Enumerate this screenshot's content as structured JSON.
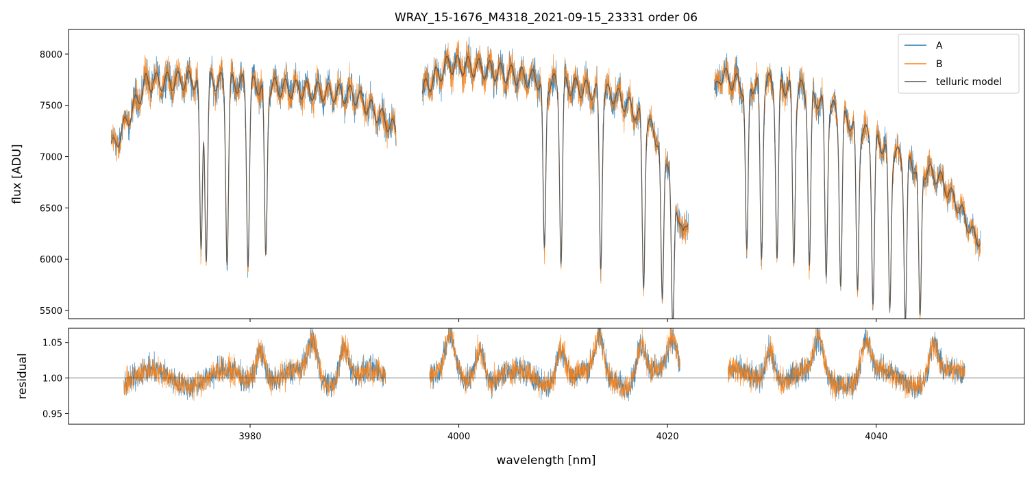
{
  "chart_data": {
    "type": "line",
    "title": "WRAY_15-1676_M4318_2021-09-15_23331  order 06",
    "xlabel": "wavelength [nm]",
    "colors": {
      "A": "#1f77b4",
      "B": "#ff7f0e",
      "telluric": "#555555",
      "refline": "#444444"
    },
    "legend": {
      "position": "top-right",
      "entries": [
        "A",
        "B",
        "telluric model"
      ]
    },
    "x_ticks": [
      3980,
      4000,
      4020,
      4040
    ],
    "x_tick_labels": [
      "3980",
      "4000",
      "4020",
      "4040"
    ],
    "xlim": [
      3962.6,
      4054.2
    ],
    "top_panel": {
      "ylabel": "flux [ADU]",
      "ylim": [
        5420,
        8240
      ],
      "y_ticks": [
        5500,
        6000,
        6500,
        7000,
        7500,
        8000
      ],
      "y_tick_labels": [
        "5500",
        "6000",
        "6500",
        "7000",
        "7500",
        "8000"
      ],
      "segments": [
        {
          "x_start": 3966.7,
          "x_end": 3994.0
        },
        {
          "x_start": 3996.5,
          "x_end": 4022.0
        },
        {
          "x_start": 4024.5,
          "x_end": 4050.0
        }
      ],
      "continuum_points": {
        "x": [
          3967,
          3970,
          3975,
          3980,
          3985,
          3990,
          3993,
          3994,
          3997,
          3999,
          4001,
          4005,
          4010,
          4015,
          4018,
          4020,
          4021.5,
          4025,
          4027,
          4030,
          4033,
          4036,
          4040,
          4043,
          4046,
          4048,
          4049.5
        ],
        "y": [
          7100,
          7720,
          7750,
          7700,
          7650,
          7600,
          7350,
          7250,
          7700,
          7900,
          7880,
          7800,
          7700,
          7600,
          7350,
          7000,
          6200,
          7800,
          7700,
          7720,
          7650,
          7450,
          7150,
          6950,
          6800,
          6500,
          6200
        ]
      },
      "telluric_lines_nm": [
        3975.3,
        3975.8,
        3977.8,
        3979.8,
        3981.5,
        4008.2,
        4009.8,
        4013.6,
        4017.7,
        4019.5,
        4020.5,
        4027.6,
        4029.0,
        4030.5,
        4032.1,
        4033.6,
        4035.2,
        4036.6,
        4038.2,
        4039.7,
        4041.3,
        4042.8,
        4044.2
      ]
    },
    "bottom_panel": {
      "ylabel": "residual",
      "ylim": [
        0.935,
        1.07
      ],
      "y_ticks": [
        0.95,
        1.0,
        1.05
      ],
      "y_tick_labels": [
        "0.95",
        "1.00",
        "1.05"
      ],
      "reference_line": 1.0,
      "segments": [
        {
          "x_start": 3967.9,
          "x_end": 3993.0
        },
        {
          "x_start": 3997.2,
          "x_end": 4021.2
        },
        {
          "x_start": 4025.8,
          "x_end": 4048.5
        }
      ],
      "emission_peaks_nm": [
        3981.0,
        3986.0,
        3989.0,
        3999.2,
        4002.0,
        4009.8,
        4013.5,
        4017.5,
        4020.5,
        4029.8,
        4034.5,
        4039.0,
        4045.5
      ]
    }
  }
}
